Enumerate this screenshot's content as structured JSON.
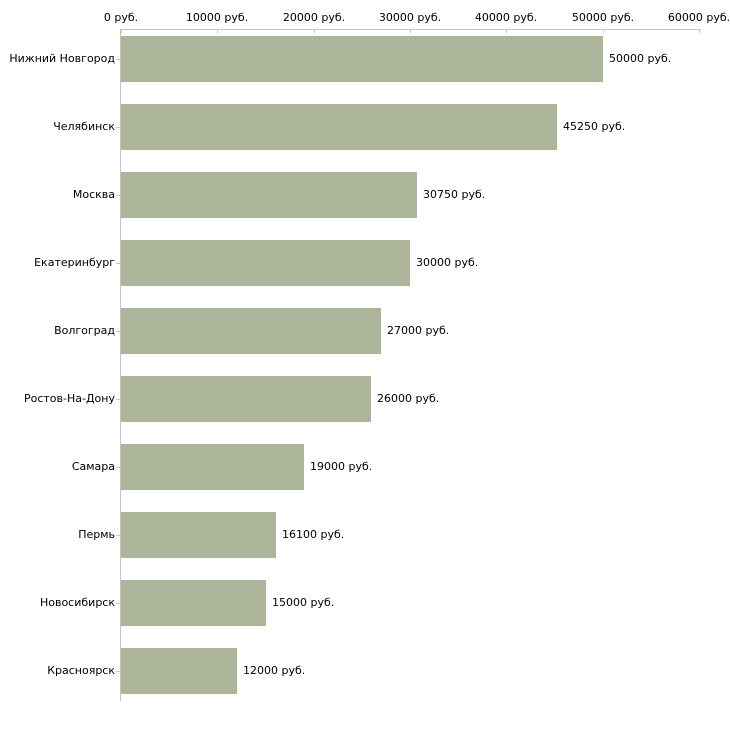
{
  "chart_data": {
    "type": "bar",
    "orientation": "horizontal",
    "title": "",
    "xlabel": "",
    "ylabel": "",
    "unit": "руб.",
    "xlim": [
      0,
      60000
    ],
    "grid": false,
    "legend": false,
    "x_ticks": [
      {
        "value": 0,
        "label": "0 руб."
      },
      {
        "value": 10000,
        "label": "10000 руб."
      },
      {
        "value": 20000,
        "label": "20000 руб."
      },
      {
        "value": 30000,
        "label": "30000 руб."
      },
      {
        "value": 40000,
        "label": "40000 руб."
      },
      {
        "value": 50000,
        "label": "50000 руб."
      },
      {
        "value": 60000,
        "label": "60000 руб."
      }
    ],
    "categories": [
      "Нижний Новгород",
      "Челябинск",
      "Москва",
      "Екатеринбург",
      "Волгоград",
      "Ростов-На-Дону",
      "Самара",
      "Пермь",
      "Новосибирск",
      "Красноярск"
    ],
    "values": [
      50000,
      45250,
      30750,
      30000,
      27000,
      26000,
      19000,
      16100,
      15000,
      12000
    ],
    "value_labels": [
      "50000 руб.",
      "45250 руб.",
      "30750 руб.",
      "30000 руб.",
      "27000 руб.",
      "26000 руб.",
      "19000 руб.",
      "15000 руб.",
      "12000 руб."
    ],
    "value_labels_full": [
      "50000 руб.",
      "45250 руб.",
      "30750 руб.",
      "30000 руб.",
      "27000 руб.",
      "26000 руб.",
      "19000 руб.",
      "16100 руб.",
      "15000 руб.",
      "12000 руб."
    ],
    "colors": {
      "bar": "#acb49a",
      "axis_line": "#c4c4c4",
      "tick_mark": "#cfcfa4",
      "text": "#000000",
      "background": "#ffffff"
    }
  }
}
